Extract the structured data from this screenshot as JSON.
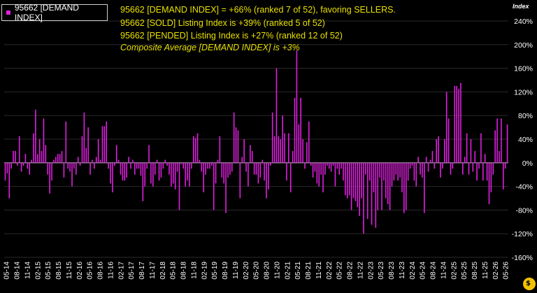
{
  "legend": {
    "label": "95662 [DEMAND INDEX]",
    "color": "#e020e0"
  },
  "annotations": [
    "95662 [DEMAND INDEX] = +66% (ranked 7 of 52), favoring SELLERS.",
    "95662 [SOLD] Listing Index is +39% (ranked 5 of 52)",
    "95662 [PENDED] Listing Index is +27% (ranked 12 of 52)",
    "Composite Average [DEMAND INDEX] is +3%"
  ],
  "axis_title": "Index",
  "logo_text": "$",
  "chart_data": {
    "type": "bar",
    "ylabel": "Index",
    "ylim": [
      -160,
      240
    ],
    "yticks": [
      -160,
      -120,
      -80,
      -40,
      0,
      40,
      80,
      120,
      160,
      200,
      240
    ],
    "ytick_labels": [
      "-160%",
      "-120%",
      "-80%",
      "-40%",
      "0%",
      "40%",
      "80%",
      "120%",
      "160%",
      "200%",
      "240%"
    ],
    "x_tick_labels": [
      "05-14",
      "08-14",
      "11-14",
      "02-15",
      "05-15",
      "08-15",
      "11-15",
      "02-16",
      "05-16",
      "08-16",
      "11-16",
      "02-17",
      "05-17",
      "08-17",
      "11-17",
      "02-18",
      "05-18",
      "08-18",
      "11-18",
      "02-19",
      "05-19",
      "08-19",
      "11-19",
      "02-20",
      "05-20",
      "08-20",
      "11-20",
      "02-21",
      "05-21",
      "08-21",
      "11-21",
      "02-22",
      "05-22",
      "08-22",
      "11-22",
      "02-23",
      "05-23",
      "08-23",
      "11-23",
      "02-24",
      "05-24",
      "08-24",
      "11-24",
      "02-25",
      "05-25",
      "08-25",
      "11-25",
      "02-26",
      "05-26"
    ],
    "bar_color": "#e020e0",
    "values": [
      -30,
      -18,
      -60,
      -10,
      20,
      20,
      -5,
      45,
      -15,
      -5,
      15,
      -10,
      -20,
      5,
      50,
      90,
      15,
      40,
      20,
      75,
      30,
      -20,
      -52,
      -30,
      5,
      10,
      15,
      15,
      20,
      -25,
      70,
      -10,
      -15,
      -40,
      -10,
      -20,
      10,
      -5,
      45,
      85,
      25,
      60,
      -20,
      5,
      -10,
      10,
      40,
      5,
      62,
      62,
      70,
      -10,
      -35,
      -50,
      -5,
      30,
      5,
      -20,
      -30,
      -30,
      -25,
      10,
      -10,
      5,
      -20,
      -10,
      -10,
      -22,
      -65,
      -40,
      -10,
      30,
      -35,
      -40,
      -20,
      5,
      -30,
      -25,
      -10,
      5,
      -5,
      -20,
      -40,
      -35,
      -45,
      -15,
      -80,
      -2,
      -10,
      -40,
      -30,
      -40,
      -10,
      45,
      42,
      50,
      5,
      -15,
      -50,
      -20,
      -10,
      -10,
      -5,
      -80,
      -35,
      5,
      45,
      -25,
      -35,
      -85,
      -25,
      -20,
      -15,
      85,
      60,
      55,
      -60,
      10,
      40,
      -15,
      -40,
      30,
      20,
      -20,
      -20,
      -35,
      -25,
      5,
      -30,
      -60,
      -45,
      -5,
      85,
      45,
      160,
      45,
      40,
      80,
      50,
      -30,
      50,
      -50,
      20,
      110,
      190,
      65,
      110,
      40,
      -10,
      35,
      70,
      -5,
      -25,
      -15,
      -35,
      -40,
      -20,
      -50,
      -20,
      -5,
      -10,
      -15,
      -5,
      -40,
      -10,
      -20,
      -10,
      -30,
      -55,
      -60,
      -55,
      -80,
      -60,
      -65,
      -75,
      -90,
      -60,
      -120,
      -20,
      -95,
      -30,
      -105,
      -50,
      -110,
      -80,
      -25,
      -80,
      -30,
      -60,
      -70,
      -80,
      -40,
      -30,
      -20,
      -30,
      -25,
      -50,
      -85,
      -80,
      -30,
      -10,
      -5,
      -30,
      -40,
      10,
      -20,
      -25,
      -85,
      10,
      -15,
      5,
      20,
      -10,
      40,
      45,
      -25,
      -10,
      40,
      120,
      75,
      -20,
      -10,
      130,
      130,
      125,
      135,
      -20,
      10,
      50,
      -20,
      40,
      -15,
      20,
      -30,
      -10,
      50,
      -30,
      15,
      -30,
      -70,
      -50,
      -20,
      55,
      75,
      20,
      75,
      -45,
      -10,
      65
    ]
  }
}
